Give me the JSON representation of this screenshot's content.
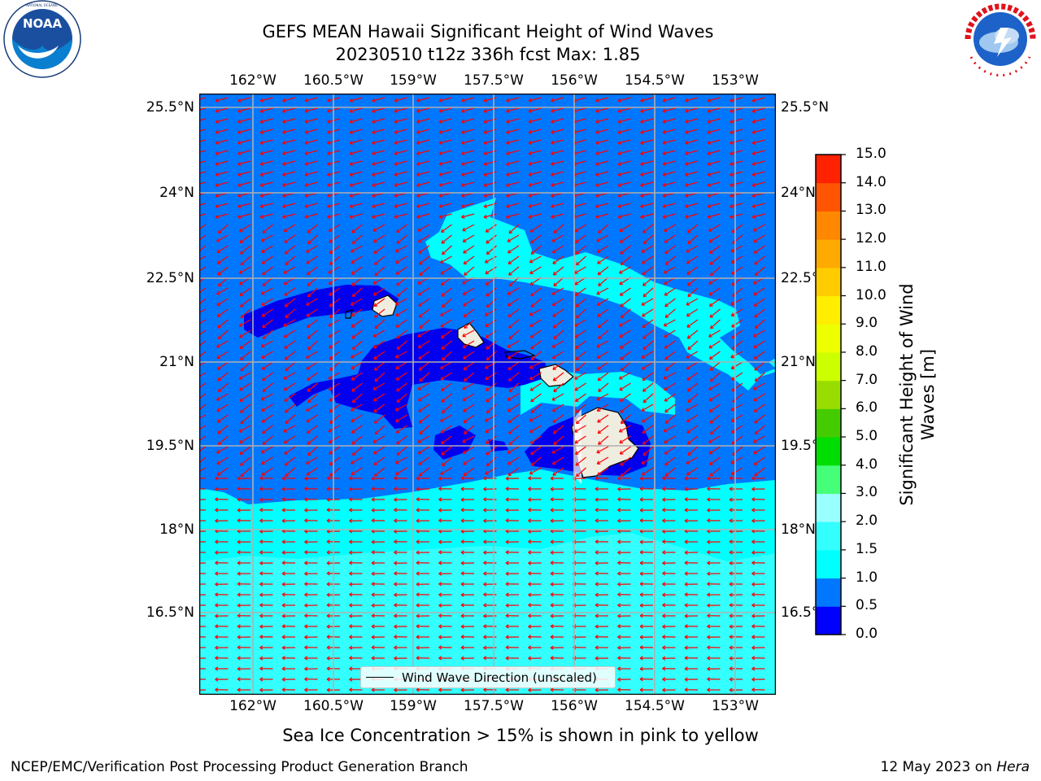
{
  "header": {
    "title_line1": "GEFS MEAN Hawaii Significant Height of Wind Waves",
    "title_line2": "20230510 t12z 336h fcst   Max: 1.85"
  },
  "logos": {
    "left": {
      "name": "NOAA",
      "ring_text": "NATIONAL OCEANIC AND ATMOSPHERIC ADMINISTRATION · U.S. DEPARTMENT OF COMMERCE"
    },
    "right": {
      "name": "NATIONAL WEATHER SERVICE"
    }
  },
  "map": {
    "lon_ticks": [
      "162°W",
      "160.5°W",
      "159°W",
      "157.5°W",
      "156°W",
      "154.5°W",
      "153°W"
    ],
    "lat_ticks": [
      "25.5°N",
      "24°N",
      "22.5°N",
      "21°N",
      "19.5°N",
      "18°N",
      "16.5°N"
    ],
    "legend_label": "Wind Wave Direction (unscaled)",
    "arrow_color": "#ff0000",
    "land_color": "#efece0"
  },
  "colorbar": {
    "title": "Significant Height of Wind Waves [m]",
    "tick_labels": [
      "0.0",
      "0.5",
      "1.0",
      "1.5",
      "2.0",
      "3.0",
      "4.0",
      "5.0",
      "6.0",
      "7.0",
      "8.0",
      "9.0",
      "10.0",
      "11.0",
      "12.0",
      "13.0",
      "14.0",
      "15.0"
    ],
    "colors": [
      "#0000ff",
      "#0077ff",
      "#00ffff",
      "#33ffff",
      "#99ffff",
      "#44ff77",
      "#00dd00",
      "#44cc00",
      "#99dd00",
      "#ccff00",
      "#eeff00",
      "#ffee00",
      "#ffcc00",
      "#ffaa00",
      "#ff8800",
      "#ff5500",
      "#ff2200"
    ]
  },
  "notes": {
    "sea_ice": "Sea Ice Concentration > 15% is shown in pink to yellow",
    "credit_left": "NCEP/EMC/Verification Post Processing Product Generation Branch",
    "credit_right_prefix": "12 May 2023 on ",
    "credit_right_host": "Hera"
  }
}
